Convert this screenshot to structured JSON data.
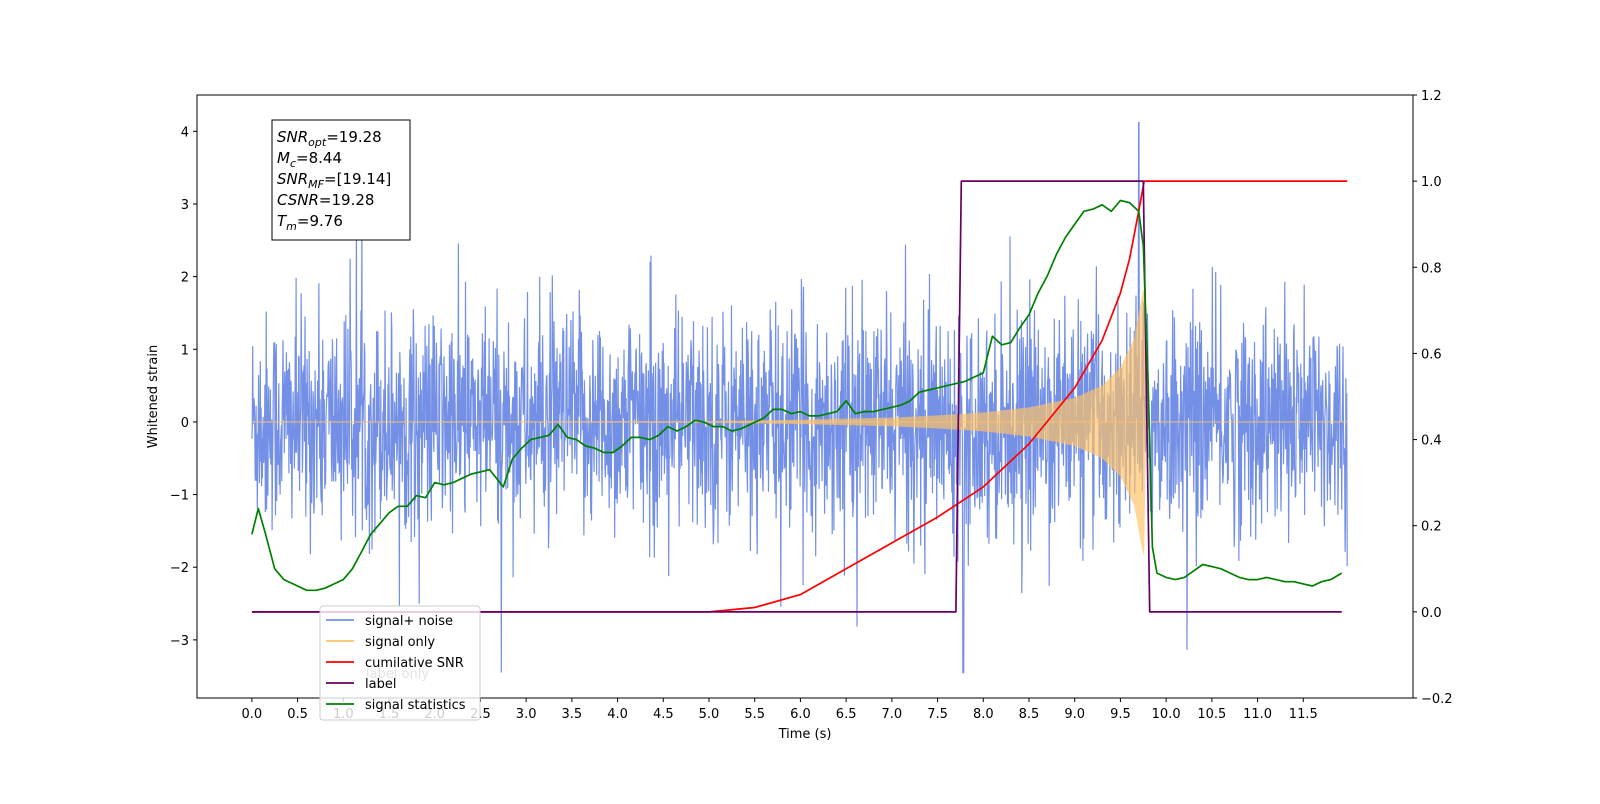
{
  "chart_data": {
    "type": "line",
    "title": "",
    "xlabel": "Time (s)",
    "ylabel": "Whitened strain",
    "xlim": [
      -0.6,
      12.7
    ],
    "ylim": [
      -3.8,
      4.5
    ],
    "ylim_right": [
      -0.2,
      1.2
    ],
    "x_ticks": [
      0.0,
      0.5,
      1.0,
      1.5,
      2.0,
      2.5,
      3.0,
      3.5,
      4.0,
      4.5,
      5.0,
      5.5,
      6.0,
      6.5,
      7.0,
      7.5,
      8.0,
      8.5,
      9.0,
      9.5,
      10.0,
      10.5,
      11.0,
      11.5
    ],
    "x_tick_labels": [
      "0.0",
      "0.5",
      "1.0",
      "1.5",
      "2.0",
      "2.5",
      "3.0",
      "3.5",
      "4.0",
      "4.5",
      "5.0",
      "5.5",
      "6.0",
      "6.5",
      "7.0",
      "7.5",
      "8.0",
      "8.5",
      "9.0",
      "9.5",
      "10.0",
      "10.5",
      "11.0",
      "11.5"
    ],
    "y_ticks": [
      -3,
      -2,
      -1,
      0,
      1,
      2,
      3,
      4
    ],
    "y_tick_labels": [
      "−3",
      "−2",
      "−1",
      "0",
      "1",
      "2",
      "3",
      "4"
    ],
    "y_ticks_right": [
      -0.2,
      0.0,
      0.2,
      0.4,
      0.6,
      0.8,
      1.0,
      1.2
    ],
    "y_tick_labels_right": [
      "−0.2",
      "0.0",
      "0.2",
      "0.4",
      "0.6",
      "0.8",
      "1.0",
      "1.2"
    ],
    "grid": false,
    "legend_position": "lower-left",
    "legend": [
      {
        "label": "signal+ noise",
        "color": "#7390e6"
      },
      {
        "label": "signal only",
        "color": "#ffc266"
      },
      {
        "label": "cumilative SNR",
        "color": "#ff0000"
      },
      {
        "label": "label",
        "color": "#660066"
      },
      {
        "label": "signal statistics",
        "color": "#008000"
      }
    ],
    "hidden_legend_text": "label only",
    "info_box": [
      {
        "main": "SNR",
        "sub": "opt",
        "rest": "=19.28"
      },
      {
        "main": "M",
        "sub": "c",
        "rest": "=8.44"
      },
      {
        "main": "SNR",
        "sub": "MF",
        "rest": "=[19.14]"
      },
      {
        "main": "CSNR",
        "sub": "",
        "rest": "=19.28"
      },
      {
        "main": "T",
        "sub": "m",
        "rest": "=9.76"
      }
    ],
    "series": [
      {
        "name": "signal+ noise",
        "axis": "left",
        "color": "#7390e6",
        "style": "dense noise band",
        "x_range": [
          0.0,
          11.98
        ],
        "typical_range": [
          -1.6,
          1.6
        ],
        "max_value": 4.12,
        "max_x": 9.7,
        "min_value": -3.45,
        "min_x": 7.78
      },
      {
        "name": "signal only",
        "axis": "left",
        "color": "#ffc266",
        "style": "chirp envelope",
        "x_range": [
          0.0,
          11.98
        ],
        "chirp_peak_x": 9.76,
        "envelope": [
          [
            0.0,
            0.0
          ],
          [
            5.0,
            0.01
          ],
          [
            6.0,
            0.03
          ],
          [
            7.0,
            0.06
          ],
          [
            7.5,
            0.09
          ],
          [
            8.0,
            0.13
          ],
          [
            8.5,
            0.2
          ],
          [
            9.0,
            0.33
          ],
          [
            9.3,
            0.5
          ],
          [
            9.5,
            0.75
          ],
          [
            9.65,
            1.15
          ],
          [
            9.73,
            1.7
          ],
          [
            9.76,
            1.9
          ],
          [
            9.78,
            0.0
          ],
          [
            11.98,
            0.0
          ]
        ]
      },
      {
        "name": "cumilative SNR",
        "axis": "right",
        "color": "#ff0000",
        "x": [
          0.0,
          5.0,
          5.5,
          6.0,
          6.5,
          7.0,
          7.5,
          8.0,
          8.5,
          9.0,
          9.3,
          9.5,
          9.6,
          9.7,
          9.76,
          10.0,
          11.98
        ],
        "y": [
          0.0,
          0.0,
          0.01,
          0.04,
          0.1,
          0.16,
          0.22,
          0.29,
          0.39,
          0.52,
          0.63,
          0.74,
          0.82,
          0.93,
          1.0,
          1.0,
          1.0
        ]
      },
      {
        "name": "label",
        "axis": "right",
        "color": "#660066",
        "x": [
          0.0,
          7.7,
          7.76,
          9.75,
          9.82,
          11.92
        ],
        "y": [
          0.0,
          0.0,
          1.0,
          1.0,
          0.0,
          0.0
        ]
      },
      {
        "name": "signal statistics",
        "axis": "right",
        "color": "#008000",
        "x": [
          0.0,
          0.07,
          0.15,
          0.25,
          0.35,
          0.5,
          0.6,
          0.7,
          0.8,
          0.9,
          1.0,
          1.1,
          1.2,
          1.3,
          1.4,
          1.5,
          1.6,
          1.7,
          1.8,
          1.9,
          2.0,
          2.1,
          2.2,
          2.3,
          2.4,
          2.5,
          2.6,
          2.75,
          2.85,
          2.95,
          3.05,
          3.15,
          3.25,
          3.35,
          3.45,
          3.55,
          3.65,
          3.75,
          3.85,
          3.95,
          4.05,
          4.15,
          4.25,
          4.35,
          4.45,
          4.55,
          4.65,
          4.75,
          4.85,
          4.95,
          5.05,
          5.15,
          5.25,
          5.35,
          5.5,
          5.6,
          5.7,
          5.8,
          5.9,
          6.0,
          6.1,
          6.2,
          6.3,
          6.4,
          6.5,
          6.6,
          6.7,
          6.8,
          6.9,
          7.0,
          7.1,
          7.2,
          7.3,
          7.4,
          7.5,
          7.6,
          7.7,
          7.8,
          7.9,
          8.0,
          8.1,
          8.2,
          8.3,
          8.4,
          8.5,
          8.6,
          8.7,
          8.8,
          8.9,
          9.0,
          9.1,
          9.2,
          9.3,
          9.4,
          9.5,
          9.6,
          9.7,
          9.75,
          9.8,
          9.85,
          9.9,
          10.0,
          10.1,
          10.2,
          10.3,
          10.4,
          10.5,
          10.6,
          10.7,
          10.8,
          10.9,
          11.0,
          11.1,
          11.2,
          11.3,
          11.4,
          11.5,
          11.6,
          11.7,
          11.8,
          11.92
        ],
        "y": [
          0.18,
          0.24,
          0.18,
          0.1,
          0.075,
          0.06,
          0.05,
          0.05,
          0.055,
          0.065,
          0.075,
          0.1,
          0.14,
          0.18,
          0.205,
          0.23,
          0.245,
          0.245,
          0.27,
          0.265,
          0.3,
          0.295,
          0.3,
          0.31,
          0.32,
          0.325,
          0.33,
          0.29,
          0.355,
          0.38,
          0.4,
          0.405,
          0.41,
          0.435,
          0.405,
          0.4,
          0.385,
          0.38,
          0.37,
          0.37,
          0.385,
          0.405,
          0.405,
          0.4,
          0.41,
          0.43,
          0.42,
          0.43,
          0.445,
          0.44,
          0.43,
          0.43,
          0.42,
          0.425,
          0.44,
          0.45,
          0.47,
          0.47,
          0.46,
          0.465,
          0.455,
          0.455,
          0.46,
          0.465,
          0.49,
          0.46,
          0.465,
          0.465,
          0.47,
          0.475,
          0.48,
          0.49,
          0.51,
          0.515,
          0.52,
          0.525,
          0.53,
          0.535,
          0.545,
          0.555,
          0.64,
          0.62,
          0.625,
          0.66,
          0.69,
          0.74,
          0.78,
          0.83,
          0.87,
          0.9,
          0.93,
          0.935,
          0.945,
          0.93,
          0.955,
          0.95,
          0.93,
          0.85,
          0.55,
          0.15,
          0.09,
          0.08,
          0.075,
          0.08,
          0.095,
          0.11,
          0.105,
          0.1,
          0.09,
          0.08,
          0.075,
          0.075,
          0.08,
          0.075,
          0.07,
          0.07,
          0.065,
          0.06,
          0.07,
          0.075,
          0.09
        ]
      }
    ]
  }
}
